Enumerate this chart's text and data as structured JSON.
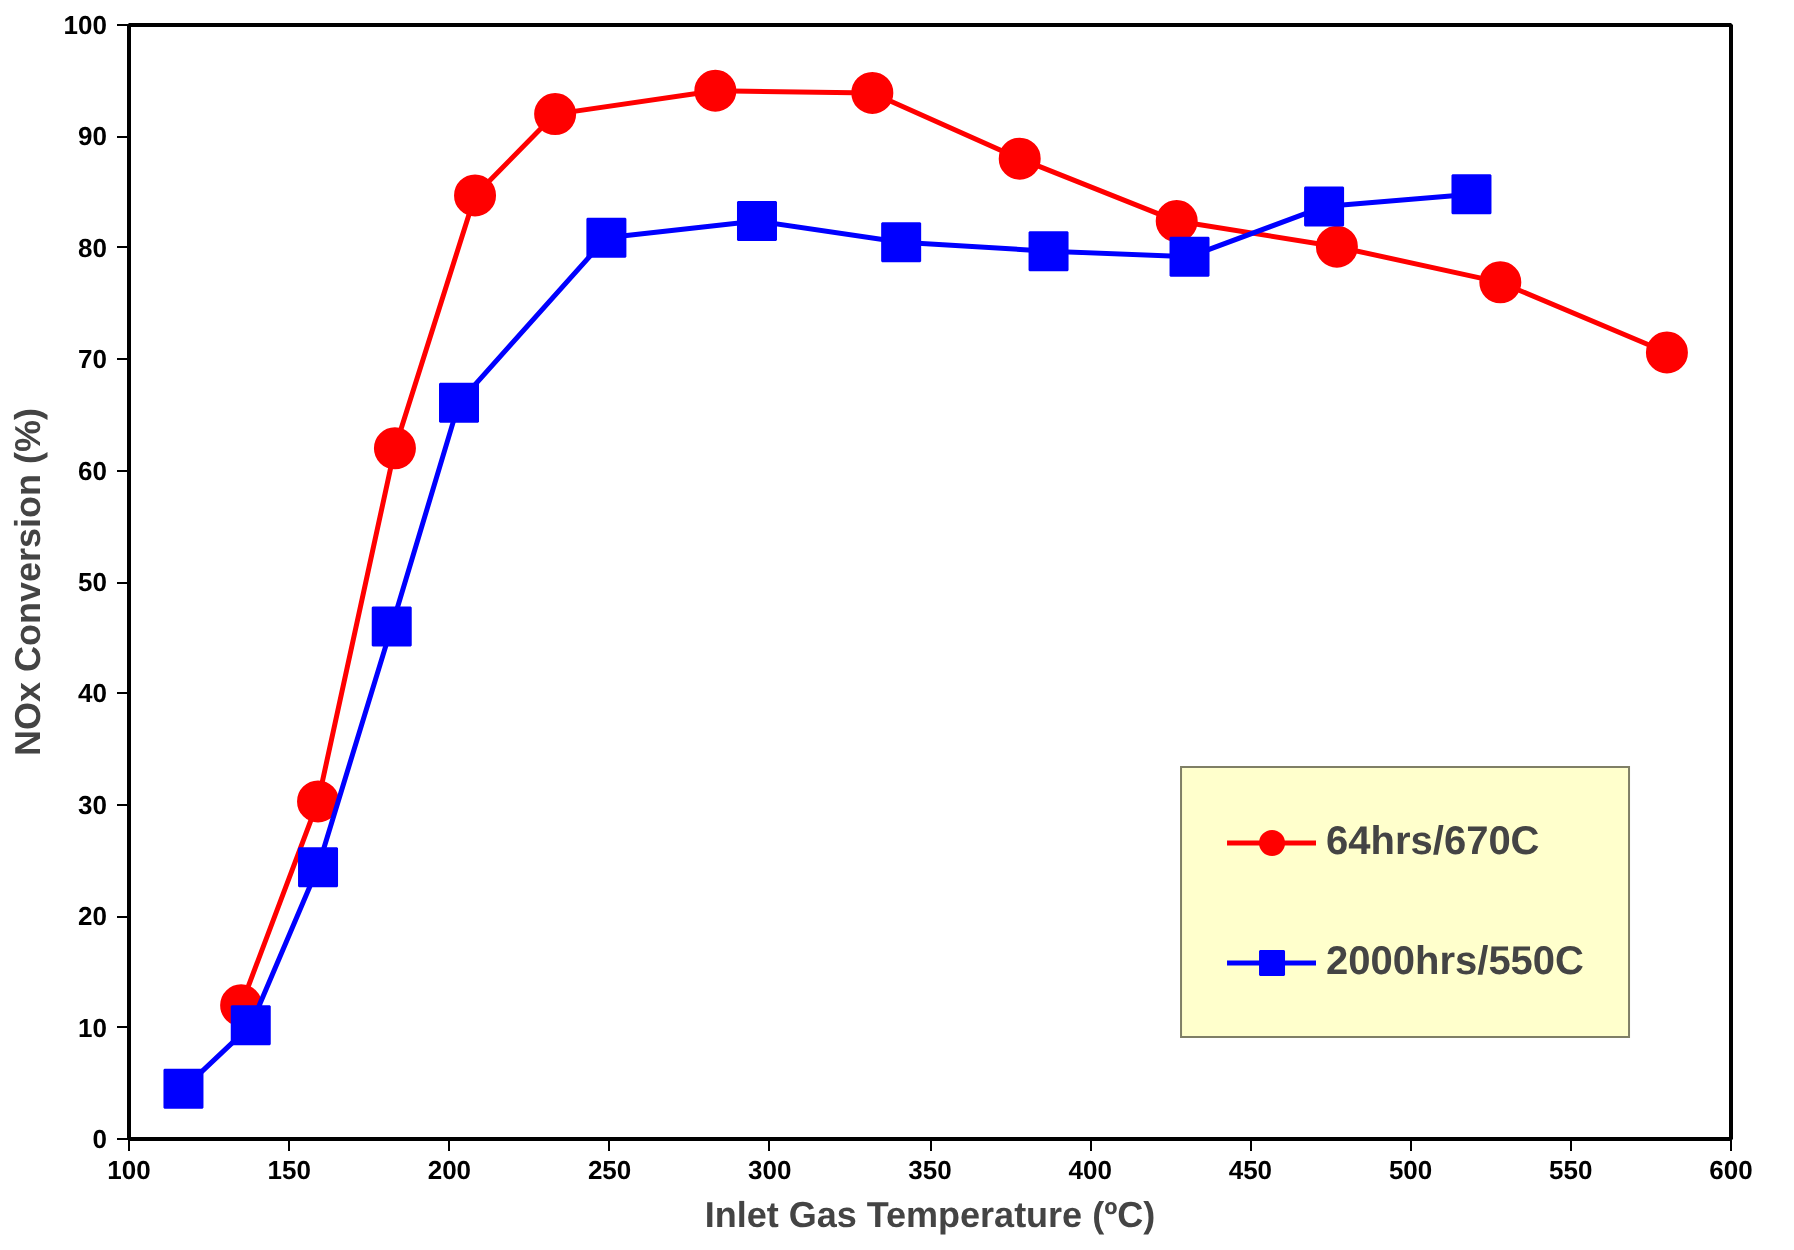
{
  "chart_data": {
    "type": "line",
    "xlabel": "Inlet Gas Temperature (ºC)",
    "ylabel": "NOx Conversion (%)",
    "xlim": [
      100,
      600
    ],
    "xticks": [
      100,
      150,
      200,
      250,
      300,
      350,
      400,
      450,
      500,
      550,
      600
    ],
    "ylim": [
      0,
      100
    ],
    "yticks": [
      0,
      10,
      20,
      30,
      40,
      50,
      60,
      70,
      80,
      90,
      100
    ],
    "grid": false,
    "legend": "bottom right",
    "series": [
      {
        "name": "64hrs/670C",
        "color": "#ff0000",
        "marker": "circle",
        "x": [
          135,
          159,
          183,
          208,
          233,
          283,
          332,
          378,
          427,
          477,
          528,
          580
        ],
        "values": [
          12,
          30.3,
          62,
          84.7,
          92,
          94.1,
          93.9,
          88,
          82.4,
          80.1,
          76.9,
          70.6
        ]
      },
      {
        "name": "2000hrs/550C",
        "color": "#0000ff",
        "marker": "square",
        "x": [
          117,
          138,
          159,
          182,
          203,
          249,
          296,
          341,
          387,
          431,
          473,
          519
        ],
        "values": [
          4.5,
          10.2,
          24.4,
          46,
          66.1,
          80.9,
          82.4,
          80.5,
          79.7,
          79.2,
          83.7,
          84.8
        ]
      }
    ]
  }
}
